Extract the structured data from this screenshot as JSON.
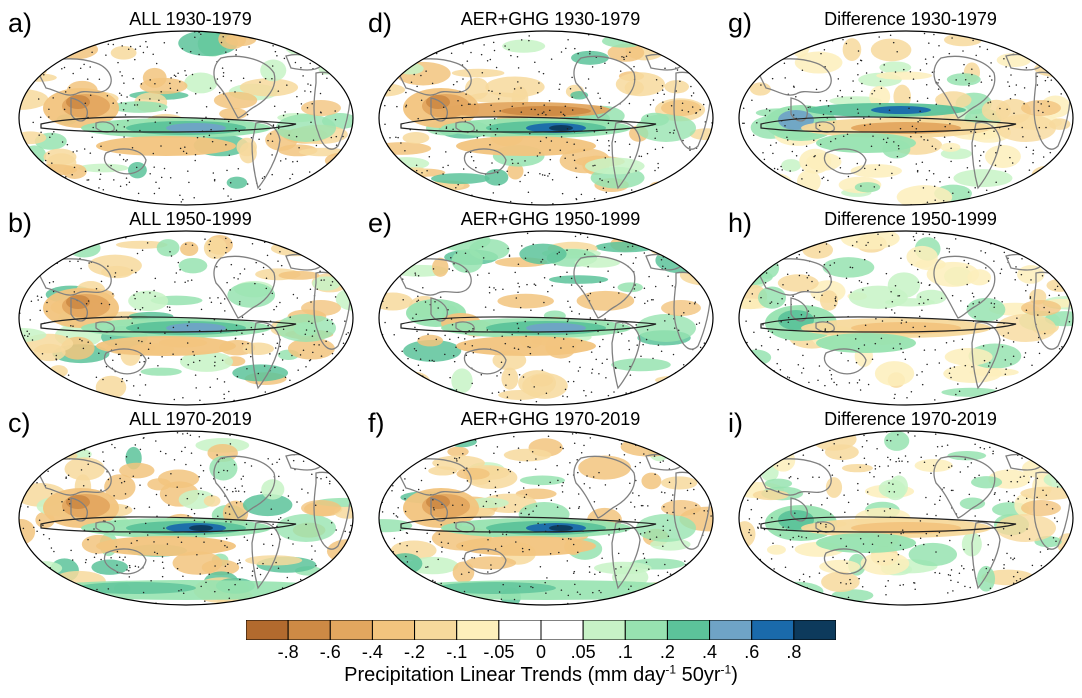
{
  "chart_data": {
    "type": "map",
    "figure_description_text": "",
    "colorbar": {
      "label": "Precipitation Linear Trends",
      "units_prefix": "(mm day",
      "units_exp1": "-1",
      "units_mid": " 50yr",
      "units_exp2": "-1",
      "units_suffix": ")",
      "tick_labels": [
        "-.8",
        "-.6",
        "-.4",
        "-.2",
        "-.1",
        "-.05",
        "0",
        ".05",
        ".1",
        ".2",
        ".4",
        ".6",
        ".8"
      ],
      "bins": [
        {
          "range": "< -.8",
          "color": "#b26a2e"
        },
        {
          "range": "-.8 to -.6",
          "color": "#cd8a45"
        },
        {
          "range": "-.6 to -.4",
          "color": "#e3a75f"
        },
        {
          "range": "-.4 to -.2",
          "color": "#f2c47e"
        },
        {
          "range": "-.2 to -.1",
          "color": "#f7d99c"
        },
        {
          "range": "-.1 to -.05",
          "color": "#fdefbb"
        },
        {
          "range": "-.05 to 0",
          "color": "#ffffff"
        },
        {
          "range": "0 to .05",
          "color": "#ffffff"
        },
        {
          "range": ".05 to .1",
          "color": "#c7f3c6"
        },
        {
          "range": ".1 to .2",
          "color": "#97e3b0"
        },
        {
          "range": ".2 to .4",
          "color": "#5cc39a"
        },
        {
          "range": ".4 to .6",
          "color": "#6fa3c6"
        },
        {
          "range": ".6 to .8",
          "color": "#1a6aab"
        },
        {
          "range": "> .8",
          "color": "#0d3a5c"
        }
      ]
    },
    "panels": [
      {
        "letter": "a)",
        "title": "ALL 1930-1979",
        "experiment": "ALL",
        "period": "1930-1979",
        "features": {
          "tropical_pacific": "wet",
          "maritime_continent": "dry",
          "subtropics": "dry"
        }
      },
      {
        "letter": "b)",
        "title": "ALL 1950-1999",
        "experiment": "ALL",
        "period": "1950-1999",
        "features": {
          "tropical_pacific": "wet",
          "maritime_continent": "dry",
          "subtropics": "dry"
        }
      },
      {
        "letter": "c)",
        "title": "ALL 1970-2019",
        "experiment": "ALL",
        "period": "1970-2019",
        "features": {
          "tropical_pacific": "strong-wet",
          "maritime_continent": "dry",
          "southern_ocean": "wet"
        }
      },
      {
        "letter": "d)",
        "title": "AER+GHG 1930-1979",
        "experiment": "AER+GHG",
        "period": "1930-1979",
        "features": {
          "tropical_pacific": "strong-wet",
          "equatorial_band_north": "dry",
          "maritime_continent": "dry"
        }
      },
      {
        "letter": "e)",
        "title": "AER+GHG 1950-1999",
        "experiment": "AER+GHG",
        "period": "1950-1999",
        "features": {
          "tropical_pacific": "wet",
          "maritime_continent": "mixed",
          "subtropics": "mixed"
        }
      },
      {
        "letter": "f)",
        "title": "AER+GHG 1970-2019",
        "experiment": "AER+GHG",
        "period": "1970-2019",
        "features": {
          "tropical_pacific": "strong-wet",
          "maritime_continent": "dry",
          "southern_ocean": "wet"
        }
      },
      {
        "letter": "g)",
        "title": "Difference 1930-1979",
        "experiment": "Difference",
        "period": "1930-1979",
        "features": {
          "tropical_pacific": "dry",
          "equatorial_band_north": "wet",
          "maritime_continent": "wet"
        }
      },
      {
        "letter": "h)",
        "title": "Difference 1950-1999",
        "experiment": "Difference",
        "period": "1950-1999",
        "features": {
          "tropical_pacific": "weak-dry",
          "maritime_continent": "weak-wet",
          "subtropics": "mixed"
        }
      },
      {
        "letter": "i)",
        "title": "Difference 1970-2019",
        "experiment": "Difference",
        "period": "1970-2019",
        "features": {
          "tropical_pacific": "weak-dry",
          "maritime_continent": "weak-wet",
          "subtropics": "mixed"
        }
      }
    ],
    "stippling": "dots mark regions where trends are not statistically significant"
  }
}
